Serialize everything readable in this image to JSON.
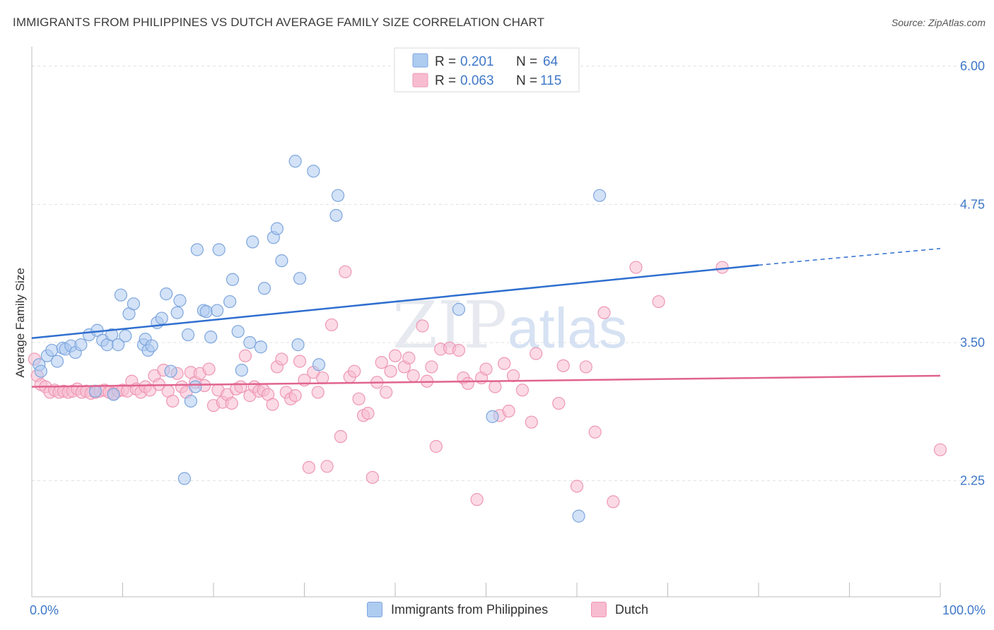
{
  "title": "IMMIGRANTS FROM PHILIPPINES VS DUTCH AVERAGE FAMILY SIZE CORRELATION CHART",
  "source": "Source: ZipAtlas.com",
  "watermark": {
    "zip": "ZIP",
    "atlas": "atlas"
  },
  "colors": {
    "blue_fill": "#aecbf0",
    "blue_stroke": "#7ea6dd",
    "blue_line": "#2f6fcf",
    "pink_fill": "#f7bcd0",
    "pink_stroke": "#ee97b4",
    "pink_line": "#e0648e",
    "axis_label": "#3f78c8",
    "grid": "#e0e0e0"
  },
  "legend_box": {
    "rows": [
      {
        "r_label": "R =",
        "r_value": "0.201",
        "n_label": "N =",
        "n_value": "64",
        "series": "blue"
      },
      {
        "r_label": "R =",
        "r_value": "0.063",
        "n_label": "N =",
        "n_value": "115",
        "series": "pink"
      }
    ]
  },
  "chart_data": {
    "type": "scatter",
    "ylabel": "Average Family Size",
    "xlim": [
      0,
      100
    ],
    "ylim": [
      1.2,
      6.1
    ],
    "x_tick_labels": [
      "0.0%",
      "100.0%"
    ],
    "y_ticks": [
      2.25,
      3.5,
      4.75,
      6.0
    ],
    "y_tick_labels": [
      "2.25",
      "3.50",
      "4.75",
      "6.00"
    ],
    "grid": true,
    "legend_position": "top-center",
    "series": [
      {
        "name": "Immigrants from Philippines",
        "color": "blue",
        "trend": {
          "x0": 0,
          "y0": 3.54,
          "x1": 80,
          "y1": 4.2,
          "dash_to_x": 100,
          "dash_to_y": 4.35
        },
        "points": [
          [
            0.8,
            3.3
          ],
          [
            1.0,
            3.24
          ],
          [
            1.7,
            3.38
          ],
          [
            2.2,
            3.43
          ],
          [
            2.8,
            3.33
          ],
          [
            3.4,
            3.45
          ],
          [
            3.7,
            3.44
          ],
          [
            4.3,
            3.47
          ],
          [
            4.8,
            3.41
          ],
          [
            5.4,
            3.48
          ],
          [
            6.3,
            3.57
          ],
          [
            7.2,
            3.61
          ],
          [
            7.8,
            3.52
          ],
          [
            8.3,
            3.48
          ],
          [
            8.8,
            3.57
          ],
          [
            9.5,
            3.48
          ],
          [
            9.8,
            3.93
          ],
          [
            10.3,
            3.56
          ],
          [
            10.7,
            3.76
          ],
          [
            11.2,
            3.85
          ],
          [
            12.3,
            3.48
          ],
          [
            12.5,
            3.53
          ],
          [
            12.8,
            3.43
          ],
          [
            13.2,
            3.47
          ],
          [
            13.8,
            3.68
          ],
          [
            14.3,
            3.72
          ],
          [
            14.8,
            3.94
          ],
          [
            15.3,
            3.24
          ],
          [
            16.0,
            3.77
          ],
          [
            16.3,
            3.88
          ],
          [
            17.2,
            3.57
          ],
          [
            17.5,
            2.97
          ],
          [
            18.2,
            4.34
          ],
          [
            18.9,
            3.79
          ],
          [
            19.2,
            3.78
          ],
          [
            19.7,
            3.55
          ],
          [
            20.4,
            3.79
          ],
          [
            20.6,
            4.34
          ],
          [
            21.8,
            3.87
          ],
          [
            22.1,
            4.07
          ],
          [
            22.7,
            3.6
          ],
          [
            23.1,
            3.25
          ],
          [
            24.0,
            3.5
          ],
          [
            24.3,
            4.41
          ],
          [
            25.2,
            3.46
          ],
          [
            25.6,
            3.99
          ],
          [
            26.6,
            4.45
          ],
          [
            27.0,
            4.53
          ],
          [
            27.5,
            4.24
          ],
          [
            29.0,
            5.14
          ],
          [
            29.3,
            3.48
          ],
          [
            29.5,
            4.08
          ],
          [
            31.0,
            5.05
          ],
          [
            31.6,
            3.3
          ],
          [
            33.5,
            4.65
          ],
          [
            33.7,
            4.83
          ],
          [
            47.0,
            3.8
          ],
          [
            50.7,
            2.83
          ],
          [
            60.2,
            1.93
          ],
          [
            62.5,
            4.83
          ],
          [
            16.8,
            2.27
          ],
          [
            18.0,
            3.1
          ],
          [
            9.0,
            3.03
          ],
          [
            7.0,
            3.06
          ]
        ]
      },
      {
        "name": "Dutch",
        "color": "pink",
        "trend": {
          "x0": 0,
          "y0": 3.1,
          "x1": 100,
          "y1": 3.2
        },
        "points": [
          [
            0.3,
            3.35
          ],
          [
            0.6,
            3.2
          ],
          [
            1.0,
            3.12
          ],
          [
            1.5,
            3.1
          ],
          [
            2.0,
            3.05
          ],
          [
            2.5,
            3.07
          ],
          [
            3.0,
            3.05
          ],
          [
            3.5,
            3.06
          ],
          [
            4.0,
            3.05
          ],
          [
            4.5,
            3.06
          ],
          [
            5.0,
            3.08
          ],
          [
            5.5,
            3.05
          ],
          [
            6.0,
            3.06
          ],
          [
            6.5,
            3.04
          ],
          [
            7.0,
            3.05
          ],
          [
            7.5,
            3.06
          ],
          [
            8.0,
            3.07
          ],
          [
            8.5,
            3.05
          ],
          [
            9.0,
            3.04
          ],
          [
            9.5,
            3.06
          ],
          [
            10.0,
            3.07
          ],
          [
            10.5,
            3.06
          ],
          [
            11.0,
            3.15
          ],
          [
            11.5,
            3.08
          ],
          [
            12.0,
            3.05
          ],
          [
            12.5,
            3.1
          ],
          [
            13.0,
            3.07
          ],
          [
            13.5,
            3.2
          ],
          [
            14.0,
            3.12
          ],
          [
            14.5,
            3.25
          ],
          [
            15.0,
            3.06
          ],
          [
            15.5,
            2.97
          ],
          [
            16.0,
            3.22
          ],
          [
            16.5,
            3.1
          ],
          [
            17.0,
            3.05
          ],
          [
            17.5,
            3.23
          ],
          [
            18.0,
            3.14
          ],
          [
            18.5,
            3.22
          ],
          [
            19.0,
            3.11
          ],
          [
            19.5,
            3.26
          ],
          [
            20.0,
            2.93
          ],
          [
            20.5,
            3.07
          ],
          [
            21.0,
            2.96
          ],
          [
            21.5,
            3.03
          ],
          [
            22.0,
            2.95
          ],
          [
            22.5,
            3.08
          ],
          [
            23.0,
            3.1
          ],
          [
            23.5,
            3.38
          ],
          [
            24.0,
            3.02
          ],
          [
            24.5,
            3.1
          ],
          [
            25.0,
            3.06
          ],
          [
            25.5,
            3.07
          ],
          [
            26.0,
            3.03
          ],
          [
            26.5,
            2.94
          ],
          [
            27.0,
            3.28
          ],
          [
            27.5,
            3.35
          ],
          [
            28.0,
            3.05
          ],
          [
            28.5,
            2.99
          ],
          [
            29.0,
            3.02
          ],
          [
            29.5,
            3.33
          ],
          [
            30.0,
            3.16
          ],
          [
            30.5,
            2.37
          ],
          [
            31.0,
            3.23
          ],
          [
            31.5,
            3.05
          ],
          [
            32.0,
            3.18
          ],
          [
            32.5,
            2.38
          ],
          [
            33.0,
            3.66
          ],
          [
            34.0,
            2.65
          ],
          [
            34.5,
            4.14
          ],
          [
            35.0,
            3.19
          ],
          [
            35.5,
            3.24
          ],
          [
            36.0,
            2.99
          ],
          [
            36.5,
            2.84
          ],
          [
            37.0,
            2.86
          ],
          [
            37.5,
            2.28
          ],
          [
            38.0,
            3.14
          ],
          [
            38.5,
            3.32
          ],
          [
            39.0,
            3.05
          ],
          [
            39.5,
            3.24
          ],
          [
            40.0,
            3.38
          ],
          [
            41.0,
            3.28
          ],
          [
            41.5,
            3.36
          ],
          [
            42.0,
            3.2
          ],
          [
            43.0,
            3.65
          ],
          [
            43.5,
            3.15
          ],
          [
            44.0,
            3.28
          ],
          [
            44.5,
            2.56
          ],
          [
            45.0,
            3.44
          ],
          [
            46.0,
            3.45
          ],
          [
            47.0,
            3.43
          ],
          [
            47.5,
            3.18
          ],
          [
            48.0,
            3.13
          ],
          [
            49.0,
            2.08
          ],
          [
            49.5,
            3.18
          ],
          [
            50.0,
            3.26
          ],
          [
            51.0,
            3.1
          ],
          [
            51.5,
            2.84
          ],
          [
            52.0,
            3.31
          ],
          [
            52.5,
            2.88
          ],
          [
            53.0,
            3.2
          ],
          [
            54.0,
            3.07
          ],
          [
            55.0,
            2.78
          ],
          [
            55.5,
            3.4
          ],
          [
            58.0,
            2.95
          ],
          [
            58.5,
            3.29
          ],
          [
            60.0,
            2.2
          ],
          [
            61.0,
            3.28
          ],
          [
            62.0,
            2.69
          ],
          [
            63.0,
            3.77
          ],
          [
            64.0,
            2.06
          ],
          [
            66.5,
            4.18
          ],
          [
            69.0,
            3.87
          ],
          [
            76.0,
            4.18
          ],
          [
            100.0,
            2.53
          ]
        ]
      }
    ]
  },
  "bottom_legend": [
    {
      "label": "Immigrants from Philippines",
      "series": "blue"
    },
    {
      "label": "Dutch",
      "series": "pink"
    }
  ]
}
